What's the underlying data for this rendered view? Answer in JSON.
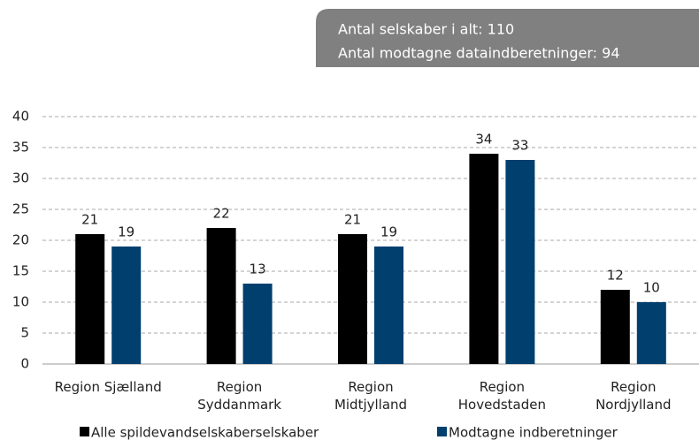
{
  "chart_data": {
    "type": "bar",
    "annotations": [
      "Antal selskaber i alt: 110",
      "Antal modtagne dataindberetninger: 94"
    ],
    "categories": [
      "Region Sjælland",
      "Region Syddanmark",
      "Region Midtjylland",
      "Region Hovedstaden",
      "Region Nordjylland"
    ],
    "series": [
      {
        "name": "Alle spildevandselskaberselskaber",
        "color": "#000000",
        "values": [
          21,
          22,
          21,
          34,
          12
        ]
      },
      {
        "name": "Modtagne indberetninger",
        "color": "#003f6e",
        "values": [
          19,
          13,
          19,
          33,
          10
        ]
      }
    ],
    "ylim": [
      0,
      40
    ],
    "yticks": [
      0,
      5,
      10,
      15,
      20,
      25,
      30,
      35,
      40
    ],
    "grid": true,
    "legend": "bottom"
  }
}
